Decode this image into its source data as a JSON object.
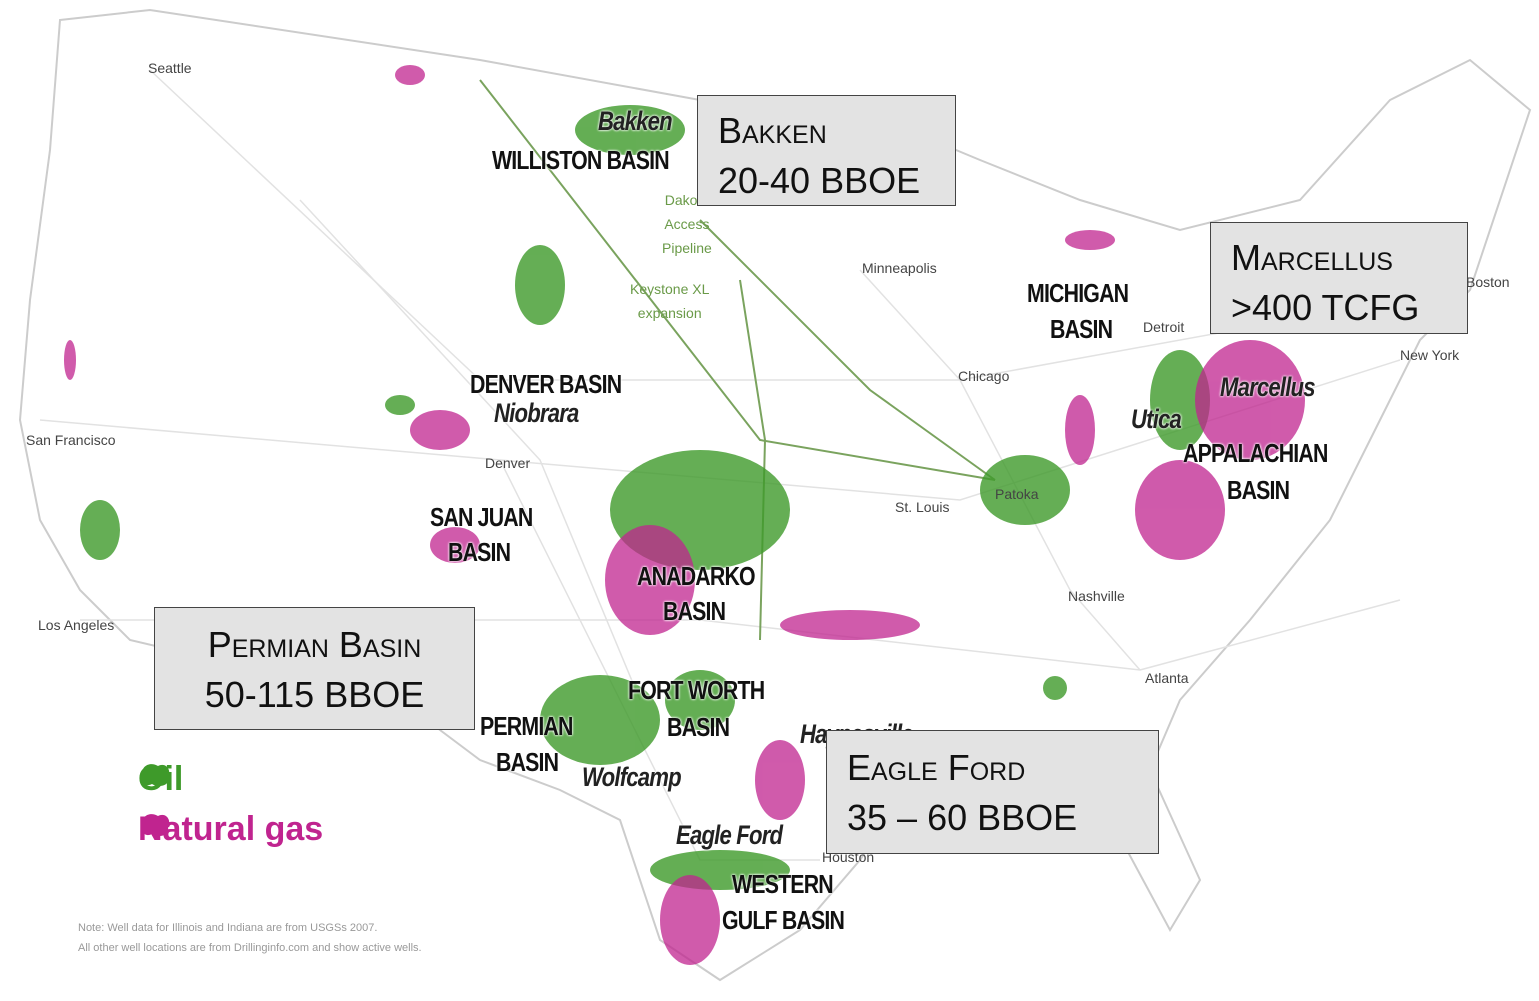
{
  "cities": [
    "Seattle",
    "San Francisco",
    "Los Angeles",
    "Denver",
    "Minneapolis",
    "Chicago",
    "St. Louis",
    "Patoka",
    "Detroit",
    "Nashville",
    "Atlanta",
    "Houston",
    "Boston",
    "New York"
  ],
  "basins": [
    [
      "WILLISTON BASIN"
    ],
    [
      "DENVER BASIN"
    ],
    [
      "SAN JUAN",
      "BASIN"
    ],
    [
      "ANADARKO",
      "BASIN"
    ],
    [
      "FORT WORTH",
      "BASIN"
    ],
    [
      "PERMIAN",
      "BASIN"
    ],
    [
      "WESTERN",
      "GULF BASIN"
    ],
    [
      "MICHIGAN",
      "BASIN"
    ],
    [
      "APPALACHIAN",
      "BASIN"
    ]
  ],
  "plays": [
    "Bakken",
    "Niobrara",
    "Utica",
    "Marcellus",
    "Wolfcamp",
    "Eagle Ford",
    "Haynesville"
  ],
  "pipelines": [
    [
      "Dakota",
      "Access",
      "Pipeline"
    ],
    [
      "Keystone XL",
      "expansion"
    ]
  ],
  "callouts": [
    {
      "title": "Bakken",
      "value": "20-40 BBOE"
    },
    {
      "title": "Marcellus",
      "value": ">400 TCFG"
    },
    {
      "title": "Permian Basin",
      "value": "50-115 BBOE"
    },
    {
      "title": "Eagle Ford",
      "value": "35 – 60 BBOE"
    }
  ],
  "legend": [
    {
      "name": "Oil",
      "color": "#3e9a2a"
    },
    {
      "name": "Natural gas",
      "color": "#c0248f"
    }
  ],
  "note": [
    "Note: Well data for Illinois and Indiana are from USGSs 2007.",
    "All other well locations are from Drillinginfo.com and show active wells."
  ]
}
